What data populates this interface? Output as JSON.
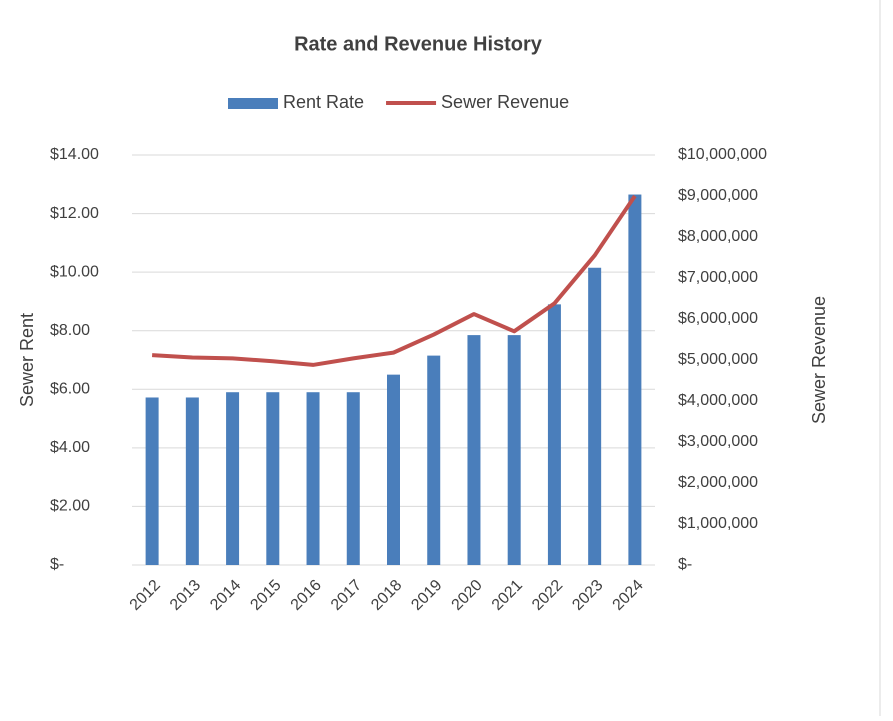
{
  "chart_data": {
    "type": "bar_line",
    "title": "Rate and Revenue History",
    "categories": [
      "2012",
      "2013",
      "2014",
      "2015",
      "2016",
      "2017",
      "2018",
      "2019",
      "2020",
      "2021",
      "2022",
      "2023",
      "2024"
    ],
    "series": [
      {
        "name": "Rent Rate",
        "type": "bar",
        "color": "#4a7ebb",
        "values": [
          5.72,
          5.72,
          5.9,
          5.9,
          5.9,
          5.9,
          6.5,
          7.15,
          7.85,
          7.85,
          8.9,
          10.15,
          12.65
        ]
      },
      {
        "name": "Sewer Revenue",
        "type": "line",
        "axis": "y2",
        "color": "#c0504d",
        "values": [
          5120000,
          5060000,
          5040000,
          4970000,
          4880000,
          5040000,
          5180000,
          5620000,
          6120000,
          5700000,
          6380000,
          7550000,
          9000000
        ]
      }
    ],
    "ylabel": "Sewer Rent",
    "y2label": "Sewer Revenue",
    "ylim": [
      0,
      14
    ],
    "yticks": [
      {
        "value": 0,
        "label": "$-"
      },
      {
        "value": 2,
        "label": "$2.00"
      },
      {
        "value": 4,
        "label": "$4.00"
      },
      {
        "value": 6,
        "label": "$6.00"
      },
      {
        "value": 8,
        "label": "$8.00"
      },
      {
        "value": 10,
        "label": "$10.00"
      },
      {
        "value": 12,
        "label": "$12.00"
      },
      {
        "value": 14,
        "label": "$14.00"
      }
    ],
    "y2lim": [
      0,
      10000000
    ],
    "y2ticks": [
      {
        "value": 0,
        "label": "$-"
      },
      {
        "value": 1000000,
        "label": "$1,000,000"
      },
      {
        "value": 2000000,
        "label": "$2,000,000"
      },
      {
        "value": 3000000,
        "label": "$3,000,000"
      },
      {
        "value": 4000000,
        "label": "$4,000,000"
      },
      {
        "value": 5000000,
        "label": "$5,000,000"
      },
      {
        "value": 6000000,
        "label": "$6,000,000"
      },
      {
        "value": 7000000,
        "label": "$7,000,000"
      },
      {
        "value": 8000000,
        "label": "$8,000,000"
      },
      {
        "value": 9000000,
        "label": "$9,000,000"
      },
      {
        "value": 10000000,
        "label": "$10,000,000"
      }
    ],
    "grid": true,
    "legend": "top"
  }
}
